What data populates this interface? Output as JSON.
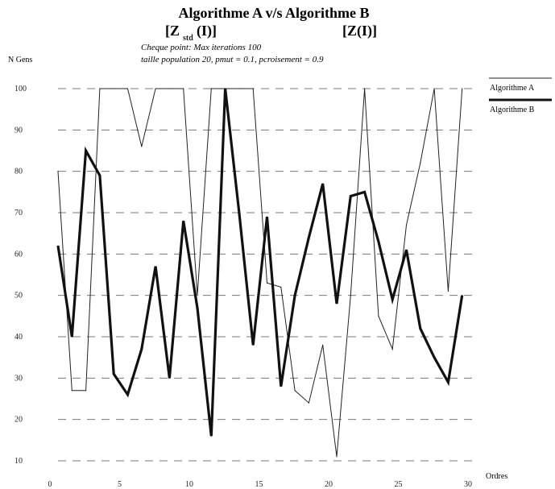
{
  "chart_data": {
    "type": "line",
    "title": "Algorithme A v/s Algorithme B",
    "subtitle_left": "[Z",
    "subtitle_left_sub": "std",
    "subtitle_left_end": "(I)]",
    "subtitle_right": "[Z(I)]",
    "note_line1": "Cheque point: Max iterations 100",
    "note_line2": "taille population 20, pmut = 0.1, pcroisement = 0.9",
    "ylabel": "N Gens",
    "xlabel": "Ordres",
    "xlim": [
      0,
      30
    ],
    "ylim": [
      10,
      100
    ],
    "x_ticks": [
      0,
      5,
      10,
      15,
      20,
      25,
      30
    ],
    "y_ticks": [
      10,
      20,
      30,
      40,
      50,
      60,
      70,
      80,
      90,
      100
    ],
    "y_tick_labels": [
      "10",
      "20",
      "30",
      "40",
      "50",
      "60",
      "70",
      "80",
      "90",
      "100"
    ],
    "grid": true,
    "legend_position": "right",
    "series": [
      {
        "name": "Algorithme A",
        "color": "#222222",
        "weight": "thin",
        "x": [
          0,
          1,
          2,
          3,
          4,
          5,
          6,
          7,
          8,
          9,
          10,
          11,
          12,
          13,
          14,
          15,
          16,
          17,
          18,
          19,
          20,
          21,
          22,
          23,
          24,
          25,
          26,
          27,
          28,
          29
        ],
        "y": [
          80,
          27,
          27,
          100,
          100,
          100,
          86,
          100,
          100,
          100,
          50,
          100,
          100,
          100,
          100,
          53,
          52,
          27,
          24,
          38,
          11,
          50,
          100,
          45,
          37,
          67,
          82,
          100,
          51,
          100
        ]
      },
      {
        "name": "Algorithme B",
        "color": "#111111",
        "weight": "thick",
        "x": [
          0,
          1,
          2,
          3,
          4,
          5,
          6,
          7,
          8,
          9,
          10,
          11,
          12,
          13,
          14,
          15,
          16,
          17,
          18,
          19,
          20,
          21,
          22,
          23,
          24,
          25,
          26,
          27,
          28,
          29
        ],
        "y": [
          62,
          40,
          85,
          79,
          31,
          26,
          37,
          57,
          30,
          68,
          47,
          16,
          100,
          70,
          38,
          69,
          28,
          50,
          64,
          77,
          48,
          74,
          75,
          63,
          49,
          61,
          42,
          35,
          29,
          50
        ]
      }
    ]
  }
}
